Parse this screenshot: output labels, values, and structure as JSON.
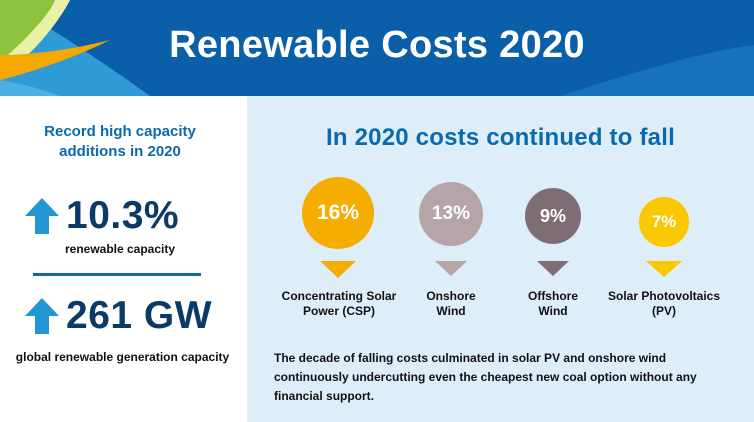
{
  "header": {
    "title": "Renewable Costs 2020",
    "background_color": "#0a5fa8"
  },
  "left": {
    "heading": "Record high capacity additions in 2020",
    "stats": [
      {
        "icon": "arrow-up-icon",
        "value": "10.3%",
        "caption": "renewable capacity"
      },
      {
        "icon": "arrow-up-icon",
        "value": "261 GW",
        "caption": "global renewable generation capacity"
      }
    ],
    "accent_color": "#2196d3",
    "value_color": "#0b3a66"
  },
  "right": {
    "heading": "In 2020 costs continued to fall",
    "background_color": "#ddeef9",
    "technologies": [
      {
        "percent": "16%",
        "label_line1": "Concentrating Solar",
        "label_line2": "Power (CSP)",
        "color": "#f5ad00"
      },
      {
        "percent": "13%",
        "label_line1": "Onshore",
        "label_line2": "Wind",
        "color": "#b5a4a8"
      },
      {
        "percent": "9%",
        "label_line1": "Offshore",
        "label_line2": "Wind",
        "color": "#7e6d74"
      },
      {
        "percent": "7%",
        "label_line1": "Solar Photovoltaics",
        "label_line2": "(PV)",
        "color": "#f9c800"
      }
    ],
    "summary": "The decade of falling costs culminated in solar PV and onshore wind continuously undercutting even the cheapest new coal option without any financial support."
  }
}
